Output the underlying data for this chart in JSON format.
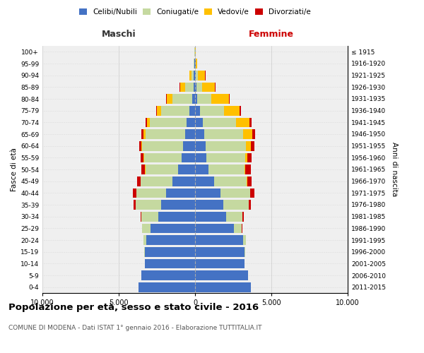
{
  "age_groups": [
    "0-4",
    "5-9",
    "10-14",
    "15-19",
    "20-24",
    "25-29",
    "30-34",
    "35-39",
    "40-44",
    "45-49",
    "50-54",
    "55-59",
    "60-64",
    "65-69",
    "70-74",
    "75-79",
    "80-84",
    "85-89",
    "90-94",
    "95-99",
    "100+"
  ],
  "birth_years": [
    "2011-2015",
    "2006-2010",
    "2001-2005",
    "1996-2000",
    "1991-1995",
    "1986-1990",
    "1981-1985",
    "1976-1980",
    "1971-1975",
    "1966-1970",
    "1961-1965",
    "1956-1960",
    "1951-1955",
    "1946-1950",
    "1941-1945",
    "1936-1940",
    "1931-1935",
    "1926-1930",
    "1921-1925",
    "1916-1920",
    "≤ 1915"
  ],
  "maschi": {
    "celibi": [
      3700,
      3500,
      3300,
      3300,
      3200,
      2900,
      2400,
      2200,
      1900,
      1500,
      1100,
      900,
      800,
      650,
      550,
      350,
      180,
      100,
      70,
      50,
      20
    ],
    "coniugati": [
      0,
      0,
      0,
      40,
      180,
      550,
      1100,
      1700,
      1950,
      2050,
      2150,
      2450,
      2650,
      2600,
      2400,
      1850,
      1300,
      550,
      150,
      30,
      8
    ],
    "vedovi": [
      0,
      0,
      0,
      0,
      0,
      0,
      0,
      4,
      5,
      10,
      18,
      28,
      55,
      110,
      190,
      280,
      380,
      330,
      160,
      25,
      4
    ],
    "divorziati": [
      0,
      0,
      0,
      0,
      5,
      28,
      75,
      140,
      210,
      240,
      240,
      190,
      170,
      145,
      110,
      75,
      45,
      18,
      10,
      5,
      2
    ]
  },
  "femmine": {
    "nubili": [
      3650,
      3450,
      3250,
      3250,
      3150,
      2550,
      2050,
      1850,
      1650,
      1250,
      880,
      730,
      680,
      620,
      500,
      330,
      160,
      80,
      55,
      35,
      18
    ],
    "coniugate": [
      0,
      0,
      0,
      35,
      180,
      520,
      1050,
      1650,
      1950,
      2150,
      2350,
      2550,
      2650,
      2550,
      2200,
      1550,
      900,
      380,
      130,
      25,
      5
    ],
    "vedove": [
      0,
      0,
      0,
      0,
      0,
      0,
      4,
      8,
      18,
      35,
      75,
      165,
      330,
      580,
      860,
      1050,
      1150,
      850,
      480,
      90,
      14
    ],
    "divorziate": [
      0,
      0,
      0,
      0,
      10,
      38,
      95,
      170,
      250,
      290,
      340,
      270,
      240,
      190,
      140,
      95,
      55,
      28,
      14,
      5,
      2
    ]
  },
  "colors": {
    "celibi": "#4472C4",
    "coniugati": "#c5d9a0",
    "vedovi": "#ffc000",
    "divorziati": "#cc0000"
  },
  "xlim": 10000,
  "xtick_vals": [
    -10000,
    -5000,
    0,
    5000,
    10000
  ],
  "xtick_labels": [
    "10.000",
    "5.000",
    "0",
    "5.000",
    "10.000"
  ],
  "title": "Popolazione per età, sesso e stato civile - 2016",
  "subtitle": "COMUNE DI MODENA - Dati ISTAT 1° gennaio 2016 - Elaborazione TUTTITALIA.IT",
  "ylabel_left": "Fasce di età",
  "ylabel_right": "Anni di nascita",
  "label_maschi": "Maschi",
  "label_femmine": "Femmine",
  "legend_labels": [
    "Celibi/Nubili",
    "Coniugati/e",
    "Vedovi/e",
    "Divorziati/e"
  ],
  "background_color": "#efefef",
  "grid_color": "#cccccc",
  "center_line_color": "#aaaaaa"
}
